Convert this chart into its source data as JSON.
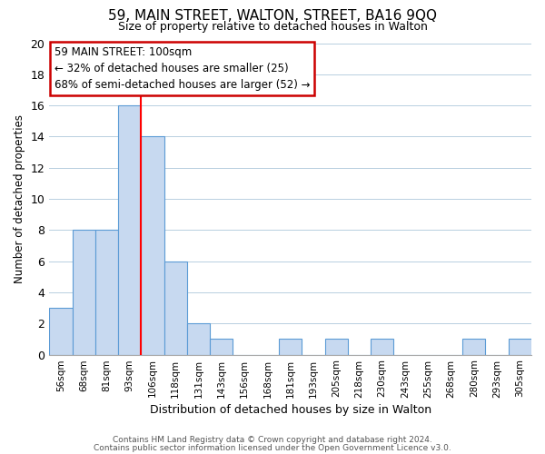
{
  "title": "59, MAIN STREET, WALTON, STREET, BA16 9QQ",
  "subtitle": "Size of property relative to detached houses in Walton",
  "xlabel": "Distribution of detached houses by size in Walton",
  "ylabel": "Number of detached properties",
  "bar_labels": [
    "56sqm",
    "68sqm",
    "81sqm",
    "93sqm",
    "106sqm",
    "118sqm",
    "131sqm",
    "143sqm",
    "156sqm",
    "168sqm",
    "181sqm",
    "193sqm",
    "205sqm",
    "218sqm",
    "230sqm",
    "243sqm",
    "255sqm",
    "268sqm",
    "280sqm",
    "293sqm",
    "305sqm"
  ],
  "bar_values": [
    3,
    8,
    8,
    16,
    14,
    6,
    2,
    1,
    0,
    0,
    1,
    0,
    1,
    0,
    1,
    0,
    0,
    0,
    1,
    0,
    1
  ],
  "bar_color": "#c7d9f0",
  "bar_edge_color": "#5b9bd5",
  "grid_color": "#b8cfe0",
  "background_color": "#ffffff",
  "red_line_index": 4,
  "annotation_title": "59 MAIN STREET: 100sqm",
  "annotation_line1": "← 32% of detached houses are smaller (25)",
  "annotation_line2": "68% of semi-detached houses are larger (52) →",
  "ylim": [
    0,
    20
  ],
  "yticks": [
    0,
    2,
    4,
    6,
    8,
    10,
    12,
    14,
    16,
    18,
    20
  ],
  "footer1": "Contains HM Land Registry data © Crown copyright and database right 2024.",
  "footer2": "Contains public sector information licensed under the Open Government Licence v3.0."
}
